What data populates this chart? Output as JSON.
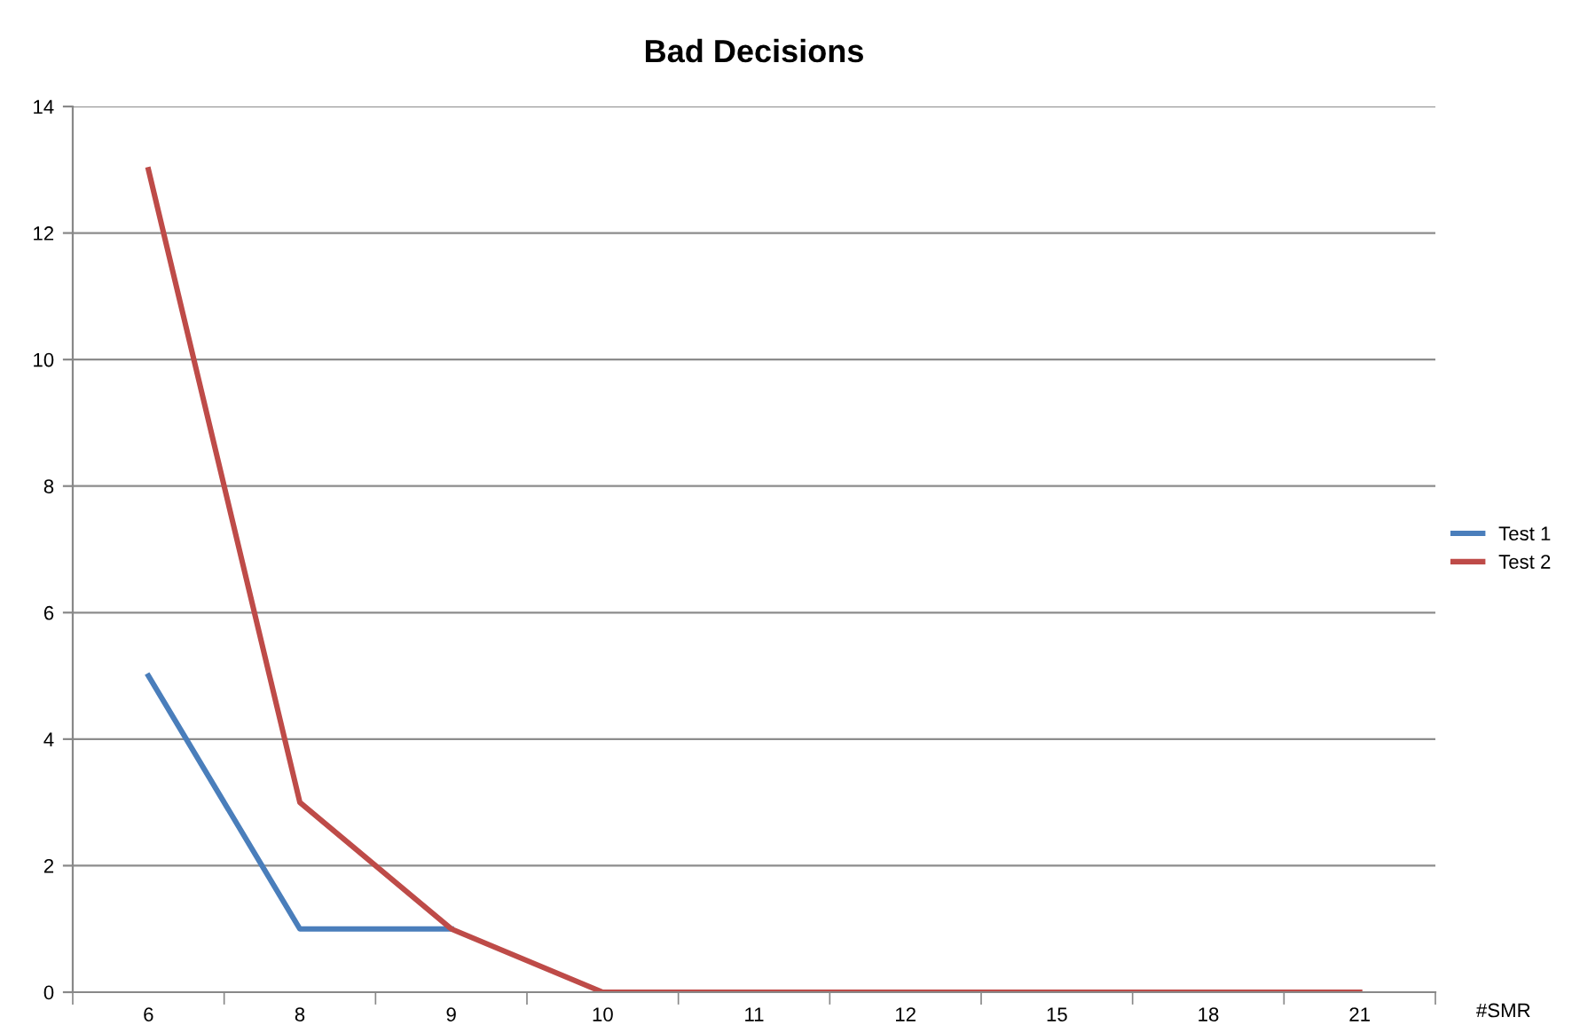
{
  "chart_data": {
    "type": "line",
    "title": "Bad Decisions",
    "xlabel": "#SMR",
    "categories": [
      "6",
      "8",
      "9",
      "10",
      "11",
      "12",
      "15",
      "18",
      "21"
    ],
    "series": [
      {
        "name": "Test 1",
        "color": "#4a7ebb",
        "values": [
          5,
          1,
          1,
          null,
          null,
          null,
          null,
          null,
          null
        ]
      },
      {
        "name": "Test 2",
        "color": "#be4b48",
        "values": [
          13,
          3,
          1,
          0,
          0,
          0,
          0,
          0,
          0
        ]
      }
    ],
    "ylim": [
      0,
      14
    ],
    "yticks": [
      0,
      2,
      4,
      6,
      8,
      10,
      12,
      14
    ],
    "grid": "y",
    "legend": "right",
    "marker": "none",
    "line_style": "solid"
  }
}
